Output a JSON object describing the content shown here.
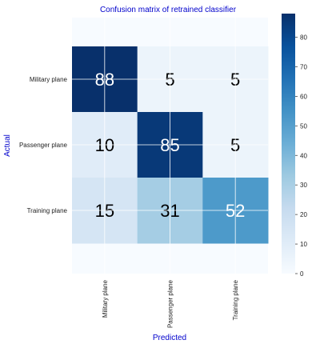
{
  "chart_data": {
    "type": "heatmap",
    "title": "Confusion matrix of retrained classifier",
    "xlabel": "Predicted",
    "ylabel": "Actual",
    "x_categories": [
      "Military plane",
      "Passenger plane",
      "Training plane"
    ],
    "y_categories": [
      "Military plane",
      "Passenger plane",
      "Training plane"
    ],
    "values": [
      [
        88,
        5,
        5
      ],
      [
        10,
        85,
        5
      ],
      [
        15,
        31,
        52
      ]
    ],
    "colorbar": {
      "min": 0,
      "max": 88,
      "ticks": [
        0,
        10,
        20,
        30,
        40,
        50,
        60,
        70,
        80
      ]
    },
    "colormap": "Blues",
    "colors": {
      "title": "#0000cc",
      "axis_title": "#0000cc",
      "text_dark": "#000000",
      "text_light": "#ffffff"
    }
  }
}
